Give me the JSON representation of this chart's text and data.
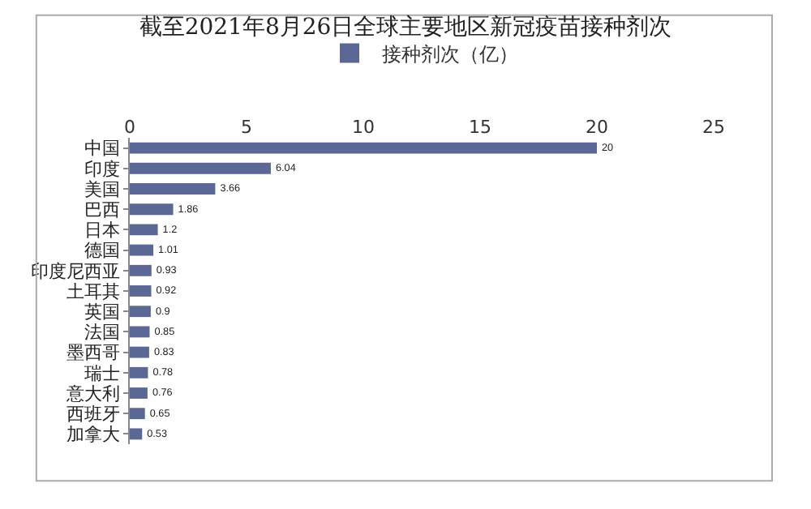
{
  "chart_data": {
    "type": "bar",
    "orientation": "horizontal",
    "title": "截至2021年8月26日全球主要地区新冠疫苗接种剂次",
    "categories": [
      "中国",
      "印度",
      "美国",
      "巴西",
      "日本",
      "德国",
      "印度尼西亚",
      "土耳其",
      "英国",
      "法国",
      "墨西哥",
      "瑞士",
      "意大利",
      "西班牙",
      "加拿大"
    ],
    "series": [
      {
        "name": "接种剂次（亿）",
        "color": "#5b6795",
        "values": [
          20,
          6.04,
          3.66,
          1.86,
          1.2,
          1.01,
          0.93,
          0.92,
          0.9,
          0.85,
          0.83,
          0.78,
          0.76,
          0.65,
          0.53
        ]
      }
    ],
    "xlim": [
      0,
      25
    ],
    "xticks": [
      0,
      5,
      10,
      15,
      20,
      25
    ],
    "data_labels": true,
    "legend": "top",
    "grid": false
  }
}
